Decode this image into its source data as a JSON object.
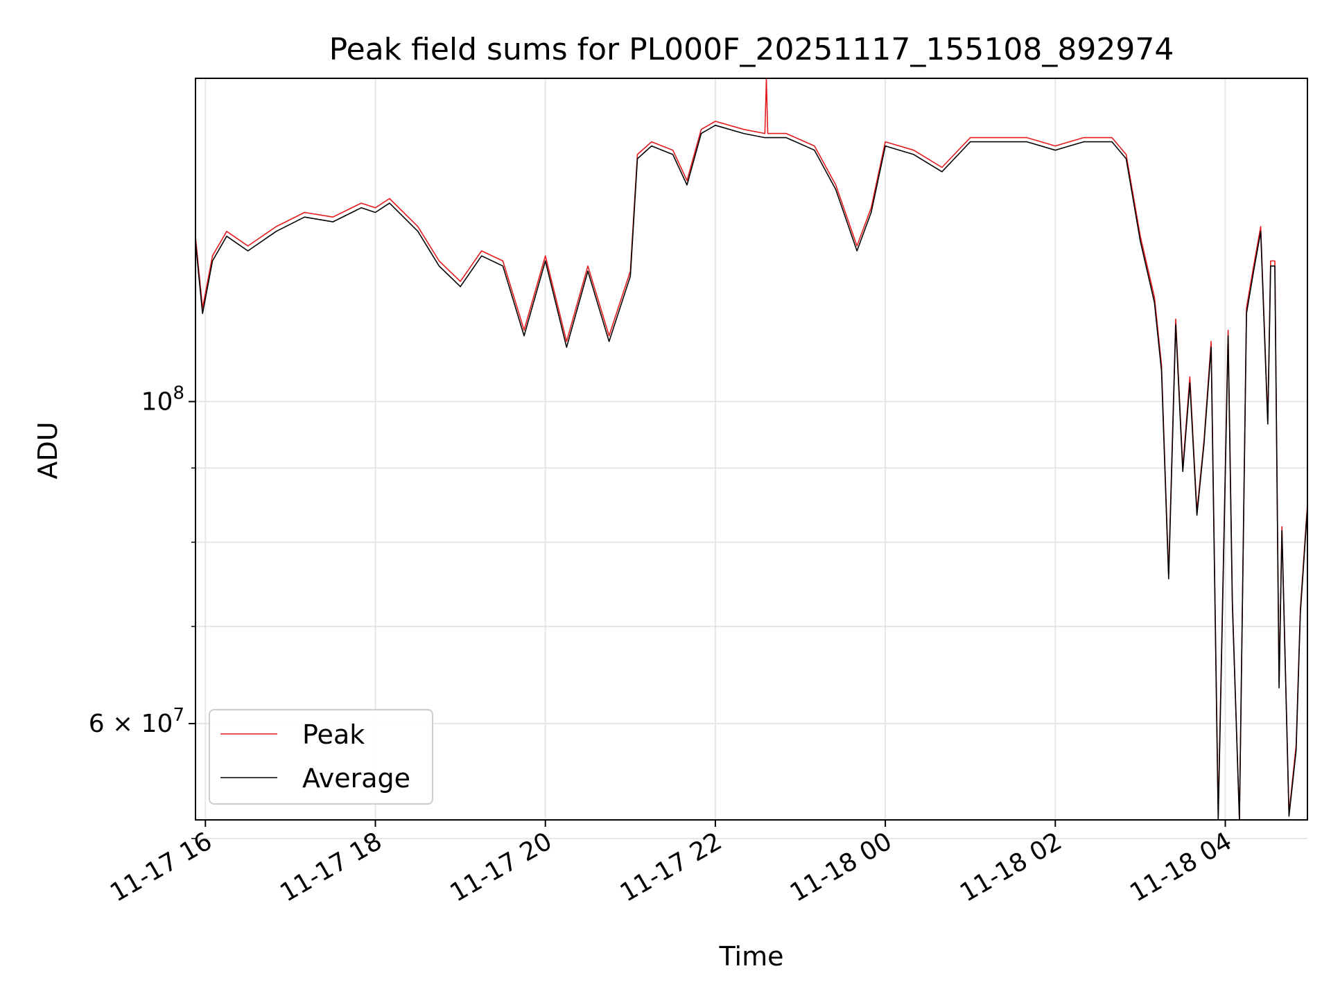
{
  "chart_data": {
    "type": "line",
    "title": "Peak field sums for PL000F_20251117_155108_892974",
    "xlabel": "Time",
    "ylabel": "ADU",
    "y_scale": "log",
    "grid": true,
    "legend_placement": "lower-left",
    "xlim": [
      "2025-11-17T15:53",
      "2025-11-18T04:58"
    ],
    "ylim": [
      51500000,
      167000000
    ],
    "x_ticks": [
      {
        "value": "2025-11-17T16:00",
        "label": "11-17 16"
      },
      {
        "value": "2025-11-17T18:00",
        "label": "11-17 18"
      },
      {
        "value": "2025-11-17T20:00",
        "label": "11-17 20"
      },
      {
        "value": "2025-11-17T22:00",
        "label": "11-17 22"
      },
      {
        "value": "2025-11-18T00:00",
        "label": "11-18 00"
      },
      {
        "value": "2025-11-18T02:00",
        "label": "11-18 02"
      },
      {
        "value": "2025-11-18T04:00",
        "label": "11-18 04"
      }
    ],
    "y_major_ticks": [
      {
        "value": 100000000,
        "base": "10",
        "exponent": "8",
        "mantissa": ""
      },
      {
        "value": 60000000,
        "base": "10",
        "exponent": "7",
        "mantissa": "6"
      }
    ],
    "y_minor_grid": [
      70000000,
      80000000,
      90000000,
      50000000
    ],
    "series": [
      {
        "name": "Peak",
        "color": "#e41a1c",
        "points": [
          [
            "2025-11-17T15:53",
            130000000
          ],
          [
            "2025-11-17T15:55",
            124000000
          ],
          [
            "2025-11-17T15:58",
            116000000
          ],
          [
            "2025-11-17T16:05",
            126000000
          ],
          [
            "2025-11-17T16:15",
            131000000
          ],
          [
            "2025-11-17T16:30",
            128000000
          ],
          [
            "2025-11-17T16:50",
            132000000
          ],
          [
            "2025-11-17T17:10",
            135000000
          ],
          [
            "2025-11-17T17:30",
            134000000
          ],
          [
            "2025-11-17T17:50",
            137000000
          ],
          [
            "2025-11-17T18:00",
            136000000
          ],
          [
            "2025-11-17T18:10",
            138000000
          ],
          [
            "2025-11-17T18:30",
            132000000
          ],
          [
            "2025-11-17T18:45",
            125000000
          ],
          [
            "2025-11-17T19:00",
            121000000
          ],
          [
            "2025-11-17T19:15",
            127000000
          ],
          [
            "2025-11-17T19:30",
            125000000
          ],
          [
            "2025-11-17T19:45",
            112000000
          ],
          [
            "2025-11-17T20:00",
            126000000
          ],
          [
            "2025-11-17T20:15",
            110000000
          ],
          [
            "2025-11-17T20:30",
            124000000
          ],
          [
            "2025-11-17T20:45",
            111000000
          ],
          [
            "2025-11-17T21:00",
            123000000
          ],
          [
            "2025-11-17T21:05",
            148000000
          ],
          [
            "2025-11-17T21:15",
            151000000
          ],
          [
            "2025-11-17T21:30",
            149000000
          ],
          [
            "2025-11-17T21:40",
            142000000
          ],
          [
            "2025-11-17T21:50",
            154000000
          ],
          [
            "2025-11-17T22:00",
            156000000
          ],
          [
            "2025-11-17T22:20",
            154000000
          ],
          [
            "2025-11-17T22:35",
            153000000
          ],
          [
            "2025-11-17T22:36",
            167000000
          ],
          [
            "2025-11-17T22:37",
            153000000
          ],
          [
            "2025-11-17T22:50",
            153000000
          ],
          [
            "2025-11-17T23:10",
            150000000
          ],
          [
            "2025-11-17T23:25",
            141000000
          ],
          [
            "2025-11-17T23:40",
            128000000
          ],
          [
            "2025-11-17T23:50",
            136000000
          ],
          [
            "2025-11-18T00:00",
            151000000
          ],
          [
            "2025-11-18T00:20",
            149000000
          ],
          [
            "2025-11-18T00:40",
            145000000
          ],
          [
            "2025-11-18T01:00",
            152000000
          ],
          [
            "2025-11-18T01:20",
            152000000
          ],
          [
            "2025-11-18T01:40",
            152000000
          ],
          [
            "2025-11-18T02:00",
            150000000
          ],
          [
            "2025-11-18T02:20",
            152000000
          ],
          [
            "2025-11-18T02:40",
            152000000
          ],
          [
            "2025-11-18T02:50",
            148000000
          ],
          [
            "2025-11-18T03:00",
            130000000
          ],
          [
            "2025-11-18T03:10",
            118000000
          ],
          [
            "2025-11-18T03:15",
            106000000
          ],
          [
            "2025-11-18T03:20",
            76000000
          ],
          [
            "2025-11-18T03:25",
            114000000
          ],
          [
            "2025-11-18T03:30",
            90000000
          ],
          [
            "2025-11-18T03:35",
            104000000
          ],
          [
            "2025-11-18T03:40",
            84000000
          ],
          [
            "2025-11-18T03:45",
            94000000
          ],
          [
            "2025-11-18T03:50",
            110000000
          ],
          [
            "2025-11-18T03:55",
            52000000
          ],
          [
            "2025-11-18T04:02",
            112000000
          ],
          [
            "2025-11-18T04:05",
            73000000
          ],
          [
            "2025-11-18T04:10",
            51500000
          ],
          [
            "2025-11-18T04:15",
            116000000
          ],
          [
            "2025-11-18T04:20",
            124000000
          ],
          [
            "2025-11-18T04:25",
            132000000
          ],
          [
            "2025-11-18T04:30",
            97000000
          ],
          [
            "2025-11-18T04:32",
            125000000
          ],
          [
            "2025-11-18T04:35",
            125000000
          ],
          [
            "2025-11-18T04:38",
            64000000
          ],
          [
            "2025-11-18T04:40",
            82000000
          ],
          [
            "2025-11-18T04:45",
            52000000
          ],
          [
            "2025-11-18T04:50",
            58000000
          ],
          [
            "2025-11-18T04:53",
            72000000
          ],
          [
            "2025-11-18T04:58",
            85000000
          ]
        ]
      },
      {
        "name": "Average",
        "color": "#000000",
        "points": [
          [
            "2025-11-17T15:53",
            129000000
          ],
          [
            "2025-11-17T15:55",
            123000000
          ],
          [
            "2025-11-17T15:58",
            115000000
          ],
          [
            "2025-11-17T16:05",
            125000000
          ],
          [
            "2025-11-17T16:15",
            130000000
          ],
          [
            "2025-11-17T16:30",
            127000000
          ],
          [
            "2025-11-17T16:50",
            131000000
          ],
          [
            "2025-11-17T17:10",
            134000000
          ],
          [
            "2025-11-17T17:30",
            133000000
          ],
          [
            "2025-11-17T17:50",
            136000000
          ],
          [
            "2025-11-17T18:00",
            135000000
          ],
          [
            "2025-11-17T18:10",
            137000000
          ],
          [
            "2025-11-17T18:30",
            131000000
          ],
          [
            "2025-11-17T18:45",
            124000000
          ],
          [
            "2025-11-17T19:00",
            120000000
          ],
          [
            "2025-11-17T19:15",
            126000000
          ],
          [
            "2025-11-17T19:30",
            124000000
          ],
          [
            "2025-11-17T19:45",
            111000000
          ],
          [
            "2025-11-17T20:00",
            125000000
          ],
          [
            "2025-11-17T20:15",
            109000000
          ],
          [
            "2025-11-17T20:30",
            123000000
          ],
          [
            "2025-11-17T20:45",
            110000000
          ],
          [
            "2025-11-17T21:00",
            122000000
          ],
          [
            "2025-11-17T21:05",
            147000000
          ],
          [
            "2025-11-17T21:15",
            150000000
          ],
          [
            "2025-11-17T21:30",
            148000000
          ],
          [
            "2025-11-17T21:40",
            141000000
          ],
          [
            "2025-11-17T21:50",
            153000000
          ],
          [
            "2025-11-17T22:00",
            155000000
          ],
          [
            "2025-11-17T22:20",
            153000000
          ],
          [
            "2025-11-17T22:35",
            152000000
          ],
          [
            "2025-11-17T22:36",
            152000000
          ],
          [
            "2025-11-17T22:37",
            152000000
          ],
          [
            "2025-11-17T22:50",
            152000000
          ],
          [
            "2025-11-17T23:10",
            149000000
          ],
          [
            "2025-11-17T23:25",
            140000000
          ],
          [
            "2025-11-17T23:40",
            127000000
          ],
          [
            "2025-11-17T23:50",
            135000000
          ],
          [
            "2025-11-18T00:00",
            150000000
          ],
          [
            "2025-11-18T00:20",
            148000000
          ],
          [
            "2025-11-18T00:40",
            144000000
          ],
          [
            "2025-11-18T01:00",
            151000000
          ],
          [
            "2025-11-18T01:20",
            151000000
          ],
          [
            "2025-11-18T01:40",
            151000000
          ],
          [
            "2025-11-18T02:00",
            149000000
          ],
          [
            "2025-11-18T02:20",
            151000000
          ],
          [
            "2025-11-18T02:40",
            151000000
          ],
          [
            "2025-11-18T02:50",
            147000000
          ],
          [
            "2025-11-18T03:00",
            129000000
          ],
          [
            "2025-11-18T03:10",
            117000000
          ],
          [
            "2025-11-18T03:15",
            105000000
          ],
          [
            "2025-11-18T03:20",
            75500000
          ],
          [
            "2025-11-18T03:25",
            113000000
          ],
          [
            "2025-11-18T03:30",
            89500000
          ],
          [
            "2025-11-18T03:35",
            103000000
          ],
          [
            "2025-11-18T03:40",
            83500000
          ],
          [
            "2025-11-18T03:45",
            93500000
          ],
          [
            "2025-11-18T03:50",
            109000000
          ],
          [
            "2025-11-18T03:55",
            51500000
          ],
          [
            "2025-11-18T04:02",
            111000000
          ],
          [
            "2025-11-18T04:05",
            72500000
          ],
          [
            "2025-11-18T04:10",
            51500000
          ],
          [
            "2025-11-18T04:15",
            115000000
          ],
          [
            "2025-11-18T04:20",
            123000000
          ],
          [
            "2025-11-18T04:25",
            131000000
          ],
          [
            "2025-11-18T04:30",
            96500000
          ],
          [
            "2025-11-18T04:32",
            124000000
          ],
          [
            "2025-11-18T04:35",
            124000000
          ],
          [
            "2025-11-18T04:38",
            63500000
          ],
          [
            "2025-11-18T04:40",
            81500000
          ],
          [
            "2025-11-18T04:45",
            51800000
          ],
          [
            "2025-11-18T04:50",
            57500000
          ],
          [
            "2025-11-18T04:53",
            71500000
          ],
          [
            "2025-11-18T04:58",
            84500000
          ]
        ]
      }
    ]
  }
}
